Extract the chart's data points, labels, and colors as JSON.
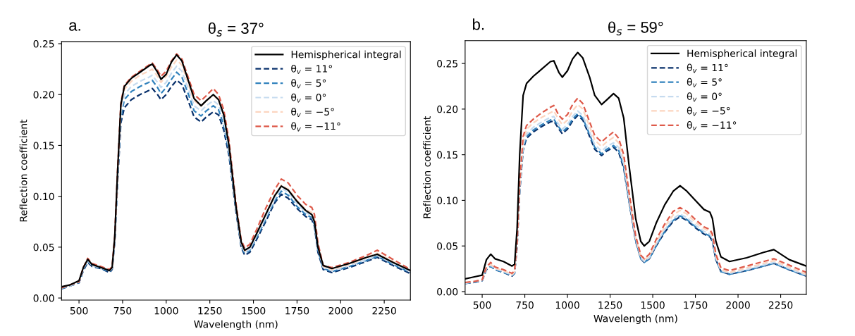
{
  "chart_data": [
    {
      "type": "line",
      "title": "θ$_{s}$ = 37°",
      "annotations": [
        "a."
      ],
      "xlabel": "Wavelength (nm)",
      "ylabel": "Reflection coefficient",
      "legend": "top right",
      "grid": false,
      "x": [
        400,
        450,
        500,
        525,
        550,
        575,
        625,
        675,
        690,
        705,
        720,
        740,
        760,
        800,
        850,
        900,
        920,
        950,
        970,
        1000,
        1030,
        1060,
        1090,
        1130,
        1160,
        1200,
        1230,
        1270,
        1300,
        1330,
        1360,
        1400,
        1430,
        1450,
        1480,
        1520,
        1570,
        1620,
        1660,
        1700,
        1750,
        1800,
        1835,
        1850,
        1870,
        1900,
        1950,
        2050,
        2150,
        2210,
        2300,
        2400
      ],
      "xlim": [
        400,
        2400
      ],
      "xticks": [
        500,
        750,
        1000,
        1250,
        1500,
        1750,
        2000,
        2250
      ],
      "ylim": [
        -0.002,
        0.252
      ],
      "yticks": [
        {
          "value": 0,
          "label": "0.00"
        },
        {
          "value": 0.05,
          "label": "0.05"
        },
        {
          "value": 0.1,
          "label": "0.10"
        },
        {
          "value": 0.15,
          "label": "0.15"
        },
        {
          "value": 0.2,
          "label": "0.20"
        },
        {
          "value": 0.25,
          "label": "0.25"
        }
      ],
      "series": [
        {
          "name": "Hemispherical integral",
          "color": "#000000",
          "line_style": "solid",
          "values": [
            0.011,
            0.013,
            0.017,
            0.03,
            0.038,
            0.033,
            0.03,
            0.027,
            0.03,
            0.06,
            0.12,
            0.19,
            0.208,
            0.216,
            0.222,
            0.228,
            0.23,
            0.222,
            0.215,
            0.22,
            0.232,
            0.239,
            0.233,
            0.212,
            0.196,
            0.189,
            0.194,
            0.2,
            0.195,
            0.18,
            0.15,
            0.09,
            0.055,
            0.047,
            0.05,
            0.064,
            0.082,
            0.1,
            0.11,
            0.106,
            0.095,
            0.086,
            0.082,
            0.075,
            0.05,
            0.032,
            0.029,
            0.034,
            0.04,
            0.043,
            0.035,
            0.027
          ]
        },
        {
          "name": "θ$_{v}$ = 11°",
          "color": "#08306b",
          "line_style": "dashed",
          "values": [
            0.009,
            0.012,
            0.015,
            0.027,
            0.035,
            0.031,
            0.029,
            0.025,
            0.028,
            0.055,
            0.11,
            0.172,
            0.187,
            0.195,
            0.2,
            0.204,
            0.206,
            0.2,
            0.195,
            0.2,
            0.208,
            0.214,
            0.21,
            0.192,
            0.178,
            0.173,
            0.178,
            0.183,
            0.18,
            0.165,
            0.14,
            0.085,
            0.05,
            0.042,
            0.045,
            0.058,
            0.075,
            0.093,
            0.102,
            0.098,
            0.088,
            0.08,
            0.077,
            0.07,
            0.045,
            0.028,
            0.025,
            0.03,
            0.036,
            0.04,
            0.032,
            0.024
          ]
        },
        {
          "name": "θ$_{v}$ = 5°",
          "color": "#3182bd",
          "line_style": "dashed",
          "values": [
            0.009,
            0.012,
            0.015,
            0.028,
            0.036,
            0.032,
            0.029,
            0.026,
            0.029,
            0.057,
            0.113,
            0.178,
            0.195,
            0.203,
            0.208,
            0.212,
            0.214,
            0.207,
            0.201,
            0.207,
            0.215,
            0.222,
            0.217,
            0.199,
            0.184,
            0.179,
            0.184,
            0.189,
            0.185,
            0.17,
            0.143,
            0.087,
            0.051,
            0.044,
            0.047,
            0.06,
            0.077,
            0.095,
            0.105,
            0.101,
            0.09,
            0.082,
            0.079,
            0.072,
            0.047,
            0.029,
            0.026,
            0.031,
            0.037,
            0.041,
            0.033,
            0.025
          ]
        },
        {
          "name": "θ$_{v}$ = 0°",
          "color": "#c6dbef",
          "line_style": "dashed",
          "values": [
            0.01,
            0.012,
            0.016,
            0.029,
            0.037,
            0.032,
            0.03,
            0.027,
            0.029,
            0.058,
            0.116,
            0.183,
            0.2,
            0.208,
            0.213,
            0.217,
            0.219,
            0.212,
            0.207,
            0.212,
            0.221,
            0.228,
            0.223,
            0.204,
            0.189,
            0.184,
            0.189,
            0.194,
            0.19,
            0.175,
            0.146,
            0.088,
            0.053,
            0.045,
            0.048,
            0.062,
            0.079,
            0.097,
            0.108,
            0.104,
            0.093,
            0.084,
            0.081,
            0.074,
            0.049,
            0.03,
            0.027,
            0.032,
            0.038,
            0.042,
            0.034,
            0.026
          ]
        },
        {
          "name": "θ$_{v}$ = −5°",
          "color": "#fcd5c0",
          "line_style": "dashed",
          "values": [
            0.01,
            0.013,
            0.016,
            0.03,
            0.038,
            0.033,
            0.03,
            0.027,
            0.03,
            0.059,
            0.118,
            0.188,
            0.205,
            0.213,
            0.219,
            0.223,
            0.225,
            0.218,
            0.212,
            0.218,
            0.227,
            0.234,
            0.229,
            0.209,
            0.194,
            0.189,
            0.194,
            0.199,
            0.195,
            0.18,
            0.15,
            0.09,
            0.054,
            0.046,
            0.05,
            0.064,
            0.082,
            0.1,
            0.111,
            0.107,
            0.096,
            0.087,
            0.084,
            0.077,
            0.051,
            0.031,
            0.028,
            0.033,
            0.04,
            0.044,
            0.036,
            0.027
          ]
        },
        {
          "name": "θ$_{v}$ = −11°",
          "color": "#de5a4a",
          "line_style": "dashed",
          "values": [
            0.01,
            0.013,
            0.016,
            0.03,
            0.039,
            0.034,
            0.031,
            0.028,
            0.031,
            0.061,
            0.122,
            0.192,
            0.209,
            0.217,
            0.223,
            0.229,
            0.231,
            0.224,
            0.218,
            0.223,
            0.233,
            0.24,
            0.235,
            0.215,
            0.2,
            0.194,
            0.199,
            0.206,
            0.2,
            0.185,
            0.155,
            0.093,
            0.057,
            0.049,
            0.053,
            0.068,
            0.088,
            0.106,
            0.117,
            0.113,
            0.101,
            0.092,
            0.089,
            0.082,
            0.054,
            0.032,
            0.03,
            0.035,
            0.042,
            0.047,
            0.038,
            0.028
          ]
        }
      ]
    },
    {
      "type": "line",
      "title": "θ$_{s}$ = 59°",
      "annotations": [
        "b."
      ],
      "xlabel": "Wavelength (nm)",
      "ylabel": "Reflection coefficient",
      "legend": "top right",
      "grid": false,
      "x": [
        400,
        450,
        500,
        525,
        550,
        575,
        625,
        675,
        690,
        705,
        720,
        740,
        760,
        800,
        850,
        900,
        920,
        950,
        970,
        1000,
        1030,
        1060,
        1090,
        1130,
        1160,
        1200,
        1230,
        1270,
        1300,
        1330,
        1360,
        1400,
        1430,
        1450,
        1480,
        1520,
        1570,
        1620,
        1660,
        1700,
        1750,
        1800,
        1835,
        1850,
        1870,
        1900,
        1950,
        2050,
        2150,
        2210,
        2300,
        2400
      ],
      "xlim": [
        400,
        2400
      ],
      "xticks": [
        500,
        750,
        1000,
        1250,
        1500,
        1750,
        2000,
        2250
      ],
      "ylim": [
        -0.003,
        0.275
      ],
      "yticks": [
        {
          "value": 0,
          "label": "0.00"
        },
        {
          "value": 0.05,
          "label": "0.05"
        },
        {
          "value": 0.1,
          "label": "0.10"
        },
        {
          "value": 0.15,
          "label": "0.15"
        },
        {
          "value": 0.2,
          "label": "0.20"
        },
        {
          "value": 0.25,
          "label": "0.25"
        }
      ],
      "series": [
        {
          "name": "Hemispherical integral",
          "color": "#000000",
          "line_style": "solid",
          "values": [
            0.014,
            0.016,
            0.018,
            0.035,
            0.041,
            0.036,
            0.033,
            0.028,
            0.03,
            0.07,
            0.15,
            0.215,
            0.228,
            0.236,
            0.244,
            0.252,
            0.253,
            0.24,
            0.235,
            0.242,
            0.255,
            0.262,
            0.256,
            0.235,
            0.215,
            0.205,
            0.21,
            0.217,
            0.212,
            0.19,
            0.14,
            0.08,
            0.055,
            0.05,
            0.055,
            0.075,
            0.095,
            0.11,
            0.116,
            0.11,
            0.1,
            0.09,
            0.087,
            0.08,
            0.055,
            0.038,
            0.033,
            0.037,
            0.043,
            0.046,
            0.035,
            0.028
          ]
        },
        {
          "name": "θ$_{v}$ = 11°",
          "color": "#08306b",
          "line_style": "dashed",
          "values": [
            0.009,
            0.01,
            0.012,
            0.024,
            0.028,
            0.024,
            0.021,
            0.017,
            0.02,
            0.05,
            0.11,
            0.155,
            0.168,
            0.175,
            0.181,
            0.186,
            0.187,
            0.178,
            0.173,
            0.178,
            0.187,
            0.193,
            0.188,
            0.17,
            0.156,
            0.149,
            0.154,
            0.158,
            0.153,
            0.135,
            0.1,
            0.055,
            0.036,
            0.032,
            0.036,
            0.05,
            0.065,
            0.077,
            0.082,
            0.078,
            0.07,
            0.063,
            0.06,
            0.055,
            0.035,
            0.022,
            0.019,
            0.023,
            0.028,
            0.031,
            0.024,
            0.017
          ]
        },
        {
          "name": "θ$_{v}$ = 5°",
          "color": "#3182bd",
          "line_style": "dashed",
          "values": [
            0.009,
            0.01,
            0.012,
            0.025,
            0.028,
            0.024,
            0.021,
            0.018,
            0.02,
            0.051,
            0.111,
            0.157,
            0.17,
            0.177,
            0.183,
            0.188,
            0.189,
            0.18,
            0.175,
            0.18,
            0.189,
            0.195,
            0.19,
            0.172,
            0.158,
            0.151,
            0.156,
            0.16,
            0.155,
            0.137,
            0.101,
            0.056,
            0.036,
            0.032,
            0.036,
            0.05,
            0.066,
            0.078,
            0.083,
            0.079,
            0.071,
            0.064,
            0.061,
            0.056,
            0.035,
            0.022,
            0.019,
            0.023,
            0.028,
            0.031,
            0.024,
            0.017
          ]
        },
        {
          "name": "θ$_{v}$ = 0°",
          "color": "#c6dbef",
          "line_style": "dashed",
          "values": [
            0.009,
            0.011,
            0.013,
            0.025,
            0.029,
            0.025,
            0.022,
            0.018,
            0.021,
            0.052,
            0.113,
            0.16,
            0.173,
            0.18,
            0.186,
            0.191,
            0.192,
            0.183,
            0.178,
            0.183,
            0.192,
            0.198,
            0.193,
            0.175,
            0.161,
            0.154,
            0.159,
            0.163,
            0.158,
            0.14,
            0.103,
            0.057,
            0.037,
            0.033,
            0.037,
            0.052,
            0.068,
            0.08,
            0.085,
            0.081,
            0.073,
            0.066,
            0.063,
            0.058,
            0.037,
            0.023,
            0.02,
            0.024,
            0.029,
            0.032,
            0.025,
            0.018
          ]
        },
        {
          "name": "θ$_{v}$ = −5°",
          "color": "#fcd5c0",
          "line_style": "dashed",
          "values": [
            0.01,
            0.011,
            0.013,
            0.026,
            0.03,
            0.026,
            0.023,
            0.019,
            0.022,
            0.054,
            0.116,
            0.165,
            0.178,
            0.185,
            0.191,
            0.196,
            0.198,
            0.188,
            0.183,
            0.188,
            0.198,
            0.205,
            0.2,
            0.181,
            0.166,
            0.159,
            0.164,
            0.169,
            0.163,
            0.145,
            0.107,
            0.059,
            0.039,
            0.035,
            0.039,
            0.054,
            0.071,
            0.084,
            0.089,
            0.085,
            0.076,
            0.069,
            0.066,
            0.061,
            0.039,
            0.024,
            0.021,
            0.026,
            0.031,
            0.034,
            0.027,
            0.019
          ]
        },
        {
          "name": "θ$_{v}$ = −11°",
          "color": "#de5a4a",
          "line_style": "dashed",
          "values": [
            0.01,
            0.011,
            0.013,
            0.027,
            0.032,
            0.027,
            0.024,
            0.02,
            0.023,
            0.056,
            0.12,
            0.17,
            0.182,
            0.189,
            0.196,
            0.202,
            0.204,
            0.193,
            0.189,
            0.194,
            0.205,
            0.212,
            0.206,
            0.186,
            0.171,
            0.164,
            0.169,
            0.175,
            0.168,
            0.15,
            0.11,
            0.061,
            0.04,
            0.036,
            0.041,
            0.057,
            0.074,
            0.088,
            0.092,
            0.088,
            0.079,
            0.071,
            0.068,
            0.063,
            0.041,
            0.026,
            0.023,
            0.028,
            0.033,
            0.036,
            0.029,
            0.021
          ]
        }
      ]
    }
  ]
}
